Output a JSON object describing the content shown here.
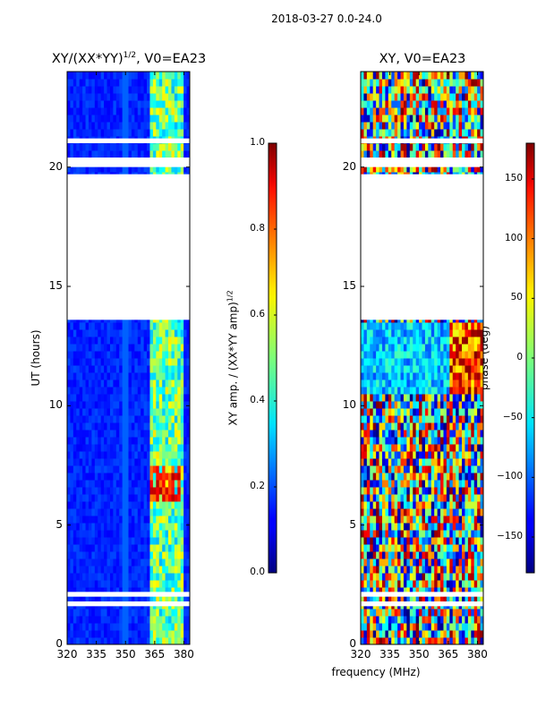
{
  "suptitle": "2018-03-27 0.0-24.0",
  "chart_data": [
    {
      "type": "heatmap",
      "title_main": "XY/(XX*YY)",
      "title_sup": "1/2",
      "title_rest": ", V0=EA23",
      "xlabel": "",
      "ylabel": "UT (hours)",
      "xlim": [
        320,
        383
      ],
      "ylim": [
        0,
        24
      ],
      "xticks": [
        "320",
        "335",
        "350",
        "365",
        "380"
      ],
      "xtick_values": [
        320,
        335,
        350,
        365,
        380
      ],
      "yticks": [
        "0",
        "5",
        "10",
        "15",
        "20"
      ],
      "ytick_values": [
        0,
        5,
        10,
        15,
        20
      ],
      "data_gaps_hours": [
        [
          1.6,
          1.8
        ],
        [
          2.0,
          2.2
        ],
        [
          13.6,
          19.7
        ],
        [
          20.0,
          20.4
        ],
        [
          21.0,
          21.2
        ]
      ],
      "colorbar": {
        "label_main": "XY amp. / (XX*YY amp)",
        "label_sup": "1/2",
        "ticks": [
          "0.0",
          "0.2",
          "0.4",
          "0.6",
          "0.8",
          "1.0"
        ],
        "tick_values": [
          0.0,
          0.2,
          0.4,
          0.6,
          0.8,
          1.0
        ],
        "range": [
          0,
          1
        ]
      }
    },
    {
      "type": "heatmap",
      "title": "XY, V0=EA23",
      "xlabel": "frequency (MHz)",
      "ylabel": "",
      "xlim": [
        320,
        383
      ],
      "ylim": [
        0,
        24
      ],
      "xticks": [
        "320",
        "335",
        "350",
        "365",
        "380"
      ],
      "xtick_values": [
        320,
        335,
        350,
        365,
        380
      ],
      "yticks": [
        "0",
        "5",
        "10",
        "15",
        "20"
      ],
      "ytick_values": [
        0,
        5,
        10,
        15,
        20
      ],
      "data_gaps_hours": [
        [
          1.6,
          1.8
        ],
        [
          2.0,
          2.2
        ],
        [
          13.6,
          19.7
        ],
        [
          20.0,
          20.4
        ],
        [
          21.0,
          21.2
        ]
      ],
      "colorbar": {
        "label": "phase (deg)",
        "ticks": [
          "150",
          "100",
          "50",
          "0",
          "−50",
          "−100",
          "−150"
        ],
        "tick_values": [
          150,
          100,
          50,
          0,
          -50,
          -100,
          -150
        ],
        "range": [
          -180,
          180
        ]
      }
    }
  ]
}
